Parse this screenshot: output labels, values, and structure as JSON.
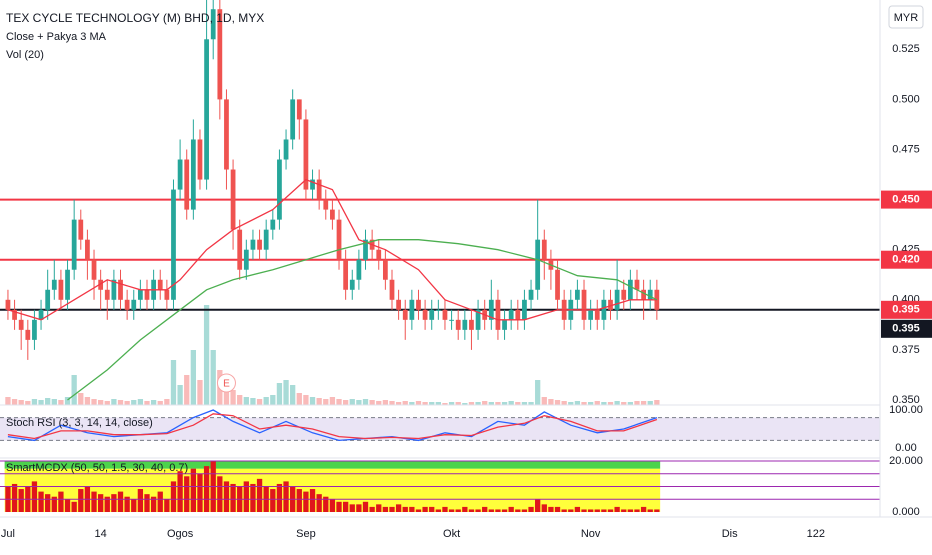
{
  "chart_data": [
    {
      "type": "candlestick",
      "title": "TEX CYCLE TECHNOLOGY (M) BHD, 1D, MYX",
      "subtitle": "Close + Pakya 3 MA",
      "currency": "MYR",
      "up_color": "#26a69a",
      "down_color": "#ef5350",
      "xlim": [
        -1.2,
        131.7
      ],
      "xticks": [
        {
          "value": 0,
          "label": "Jul"
        },
        14,
        {
          "value": 26,
          "label": "Ogos"
        },
        {
          "value": 45,
          "label": "Sep"
        },
        {
          "value": 67,
          "label": "Okt"
        },
        {
          "value": 88,
          "label": "Nov"
        },
        {
          "value": 109,
          "label": "Dis"
        },
        122
      ],
      "ylim": [
        0.3475,
        0.5496
      ],
      "yticks": [
        {
          "value": 0.35,
          "label": "0.350"
        },
        {
          "value": 0.375,
          "label": "0.375"
        },
        {
          "value": 0.4,
          "label": "0.400"
        },
        {
          "value": 0.425,
          "label": "0.425"
        },
        {
          "value": 0.45,
          "label": "0.450"
        },
        {
          "value": 0.475,
          "label": "0.475"
        },
        {
          "value": 0.5,
          "label": "0.500"
        },
        {
          "value": 0.525,
          "label": "0.525"
        }
      ],
      "open": [
        0.4,
        0.395,
        0.39,
        0.385,
        0.38,
        0.39,
        0.395,
        0.405,
        0.41,
        0.4,
        0.415,
        0.44,
        0.43,
        0.42,
        0.41,
        0.405,
        0.4,
        0.41,
        0.4,
        0.395,
        0.4,
        0.405,
        0.4,
        0.41,
        0.405,
        0.4,
        0.455,
        0.47,
        0.445,
        0.48,
        0.46,
        0.53,
        0.545,
        0.5,
        0.465,
        0.435,
        0.415,
        0.425,
        0.43,
        0.425,
        0.435,
        0.44,
        0.47,
        0.48,
        0.5,
        0.49,
        0.455,
        0.46,
        0.45,
        0.445,
        0.44,
        0.42,
        0.405,
        0.41,
        0.42,
        0.43,
        0.425,
        0.42,
        0.41,
        0.4,
        0.395,
        0.39,
        0.4,
        0.395,
        0.39,
        0.395,
        0.395,
        0.39,
        0.39,
        0.385,
        0.39,
        0.385,
        0.395,
        0.39,
        0.4,
        0.385,
        0.39,
        0.395,
        0.39,
        0.4,
        0.405,
        0.43,
        0.42,
        0.415,
        0.4,
        0.39,
        0.4,
        0.405,
        0.39,
        0.395,
        0.39,
        0.4,
        0.395,
        0.405,
        0.4,
        0.41,
        0.405,
        0.4,
        0.405
      ],
      "high": [
        0.405,
        0.4,
        0.395,
        0.39,
        0.395,
        0.4,
        0.415,
        0.42,
        0.415,
        0.42,
        0.45,
        0.445,
        0.435,
        0.425,
        0.415,
        0.41,
        0.415,
        0.415,
        0.405,
        0.405,
        0.41,
        0.41,
        0.415,
        0.415,
        0.41,
        0.46,
        0.48,
        0.475,
        0.49,
        0.485,
        0.56,
        0.56,
        0.55,
        0.505,
        0.47,
        0.44,
        0.43,
        0.435,
        0.435,
        0.44,
        0.445,
        0.475,
        0.485,
        0.505,
        0.5,
        0.495,
        0.465,
        0.465,
        0.455,
        0.45,
        0.445,
        0.425,
        0.415,
        0.425,
        0.435,
        0.435,
        0.43,
        0.425,
        0.415,
        0.405,
        0.4,
        0.405,
        0.405,
        0.4,
        0.4,
        0.4,
        0.4,
        0.395,
        0.395,
        0.395,
        0.395,
        0.4,
        0.4,
        0.41,
        0.405,
        0.395,
        0.4,
        0.4,
        0.405,
        0.41,
        0.45,
        0.435,
        0.425,
        0.42,
        0.405,
        0.405,
        0.41,
        0.41,
        0.4,
        0.4,
        0.405,
        0.405,
        0.42,
        0.41,
        0.415,
        0.415,
        0.41,
        0.41,
        0.41
      ],
      "low": [
        0.39,
        0.385,
        0.375,
        0.37,
        0.375,
        0.385,
        0.39,
        0.4,
        0.395,
        0.395,
        0.41,
        0.425,
        0.41,
        0.4,
        0.395,
        0.39,
        0.395,
        0.395,
        0.39,
        0.39,
        0.395,
        0.395,
        0.395,
        0.4,
        0.395,
        0.395,
        0.45,
        0.44,
        0.44,
        0.455,
        0.455,
        0.52,
        0.49,
        0.455,
        0.425,
        0.41,
        0.41,
        0.42,
        0.42,
        0.42,
        0.43,
        0.435,
        0.465,
        0.475,
        0.48,
        0.45,
        0.45,
        0.445,
        0.44,
        0.435,
        0.415,
        0.4,
        0.4,
        0.405,
        0.415,
        0.42,
        0.415,
        0.405,
        0.395,
        0.39,
        0.38,
        0.385,
        0.39,
        0.385,
        0.385,
        0.39,
        0.385,
        0.385,
        0.38,
        0.38,
        0.375,
        0.38,
        0.385,
        0.385,
        0.38,
        0.38,
        0.385,
        0.385,
        0.385,
        0.395,
        0.4,
        0.41,
        0.405,
        0.395,
        0.385,
        0.385,
        0.395,
        0.385,
        0.385,
        0.385,
        0.385,
        0.39,
        0.39,
        0.395,
        0.395,
        0.4,
        0.39,
        0.395,
        0.39
      ],
      "close": [
        0.395,
        0.39,
        0.385,
        0.38,
        0.39,
        0.395,
        0.405,
        0.41,
        0.4,
        0.415,
        0.44,
        0.43,
        0.42,
        0.41,
        0.405,
        0.4,
        0.41,
        0.4,
        0.395,
        0.4,
        0.405,
        0.4,
        0.41,
        0.405,
        0.4,
        0.455,
        0.47,
        0.445,
        0.48,
        0.46,
        0.53,
        0.545,
        0.5,
        0.465,
        0.435,
        0.415,
        0.425,
        0.43,
        0.425,
        0.435,
        0.44,
        0.47,
        0.48,
        0.5,
        0.49,
        0.455,
        0.46,
        0.45,
        0.445,
        0.44,
        0.42,
        0.405,
        0.41,
        0.42,
        0.43,
        0.425,
        0.42,
        0.41,
        0.4,
        0.395,
        0.39,
        0.4,
        0.395,
        0.39,
        0.395,
        0.395,
        0.39,
        0.39,
        0.385,
        0.39,
        0.385,
        0.395,
        0.39,
        0.4,
        0.385,
        0.39,
        0.395,
        0.39,
        0.4,
        0.405,
        0.43,
        0.42,
        0.415,
        0.4,
        0.39,
        0.4,
        0.405,
        0.39,
        0.395,
        0.39,
        0.4,
        0.395,
        0.405,
        0.4,
        0.41,
        0.405,
        0.4,
        0.405,
        0.395
      ],
      "series": [
        {
          "color": "#f23645",
          "x": [
            0,
            5,
            10,
            15,
            20,
            24,
            26,
            30,
            34,
            40,
            45,
            49,
            53,
            57,
            62,
            66,
            70,
            74,
            78,
            83,
            89,
            94,
            98
          ],
          "values": [
            0.395,
            0.39,
            0.4,
            0.41,
            0.405,
            0.405,
            0.41,
            0.425,
            0.435,
            0.445,
            0.46,
            0.455,
            0.43,
            0.425,
            0.415,
            0.4,
            0.395,
            0.39,
            0.39,
            0.395,
            0.395,
            0.4,
            0.4
          ]
        },
        {
          "color": "#4caf50",
          "x": [
            9,
            15,
            20,
            26,
            30,
            34,
            40,
            45,
            50,
            56,
            62,
            68,
            74,
            80,
            86,
            92,
            98
          ],
          "values": [
            0.35,
            0.365,
            0.38,
            0.395,
            0.405,
            0.41,
            0.415,
            0.42,
            0.425,
            0.43,
            0.43,
            0.428,
            0.425,
            0.42,
            0.412,
            0.41,
            0.4
          ]
        }
      ],
      "volume": {
        "label": "Vol (20)",
        "vlim": [
          0,
          405
        ],
        "values": [
          8,
          6,
          5,
          4,
          6,
          5,
          7,
          6,
          5,
          8,
          30,
          12,
          8,
          6,
          5,
          4,
          6,
          5,
          4,
          5,
          6,
          4,
          5,
          4,
          6,
          45,
          20,
          30,
          55,
          25,
          100,
          55,
          35,
          20,
          15,
          10,
          8,
          7,
          6,
          8,
          10,
          22,
          25,
          20,
          12,
          10,
          8,
          7,
          6,
          8,
          6,
          5,
          6,
          5,
          6,
          5,
          4,
          5,
          4,
          3,
          4,
          3,
          4,
          3,
          3,
          3,
          2,
          3,
          3,
          2,
          3,
          3,
          4,
          3,
          3,
          3,
          4,
          3,
          3,
          3,
          25,
          8,
          6,
          5,
          4,
          3,
          4,
          3,
          3,
          4,
          3,
          3,
          4,
          3,
          3,
          4,
          4,
          4,
          5
        ]
      },
      "hlines": [
        {
          "value": 0.45,
          "label": "0.450",
          "color": "#f23645"
        },
        {
          "value": 0.42,
          "label": "0.420",
          "color": "#f23645"
        },
        {
          "value": 0.395,
          "label": "0.395",
          "color": "#131722"
        }
      ],
      "last_price": {
        "value": 0.395,
        "label": "0.395",
        "color": "#f23645"
      },
      "event": {
        "x": 33,
        "label": "E"
      }
    },
    {
      "type": "line",
      "title": "Stoch RSI (3, 3, 14, 14, close)",
      "ylim": [
        -26.3,
        113.2
      ],
      "yticks": [
        {
          "value": 100,
          "label": "100.00"
        },
        {
          "value": 0,
          "label": "0.00"
        }
      ],
      "bands": [
        20,
        80
      ],
      "band_color": "rgba(126,87,194,0.16)",
      "series": [
        {
          "color": "#2962ff",
          "x": [
            0,
            4,
            8,
            12,
            16,
            20,
            24,
            28,
            31,
            34,
            38,
            42,
            46,
            50,
            54,
            58,
            62,
            66,
            70,
            74,
            78,
            81,
            85,
            89,
            93,
            98
          ],
          "values": [
            30,
            20,
            60,
            40,
            30,
            35,
            40,
            80,
            100,
            70,
            40,
            70,
            40,
            20,
            25,
            30,
            20,
            40,
            30,
            70,
            60,
            95,
            60,
            40,
            50,
            80
          ]
        },
        {
          "color": "#f23645",
          "x": [
            0,
            4,
            8,
            12,
            16,
            20,
            24,
            28,
            31,
            34,
            38,
            42,
            46,
            50,
            54,
            58,
            62,
            66,
            70,
            74,
            78,
            81,
            85,
            89,
            93,
            98
          ],
          "values": [
            35,
            25,
            45,
            45,
            35,
            35,
            38,
            60,
            90,
            85,
            50,
            60,
            50,
            30,
            25,
            28,
            25,
            35,
            33,
            55,
            65,
            85,
            70,
            45,
            45,
            75
          ]
        }
      ]
    },
    {
      "type": "bar",
      "title": "SmartMCDX (50, 50, 1.5, 30, 40, 0.7)",
      "ylim": [
        -1.96,
        21.18
      ],
      "yticks": [
        {
          "value": 20,
          "label": "20.000"
        },
        {
          "value": 0,
          "label": "0.000"
        }
      ],
      "levels": [
        5,
        10,
        15,
        20
      ],
      "level_color": "#9c27b0",
      "zones": [
        {
          "from": 0,
          "to": 17,
          "color": "#ffff3b"
        },
        {
          "from": 17,
          "to": 20,
          "color": "#4cd34c"
        }
      ],
      "color": "#e0161b",
      "values": [
        10,
        11,
        9,
        10,
        12,
        8,
        7,
        6,
        8,
        5,
        4,
        9,
        10,
        8,
        7,
        6,
        7,
        8,
        6,
        5,
        9,
        7,
        6,
        8,
        5,
        12,
        16,
        14,
        17,
        15,
        18,
        20,
        14,
        12,
        11,
        10,
        12,
        11,
        13,
        10,
        9,
        11,
        12,
        10,
        9,
        8,
        9,
        7,
        6,
        5,
        4,
        4,
        3,
        3,
        4,
        2,
        3,
        2,
        2,
        3,
        2,
        2,
        1,
        2,
        2,
        1,
        2,
        1,
        1,
        2,
        1,
        1,
        2,
        1,
        1,
        1,
        2,
        1,
        1,
        2,
        5,
        3,
        2,
        2,
        1,
        1,
        2,
        1,
        1,
        1,
        1,
        1,
        2,
        1,
        1,
        1,
        2,
        1,
        1
      ]
    }
  ]
}
